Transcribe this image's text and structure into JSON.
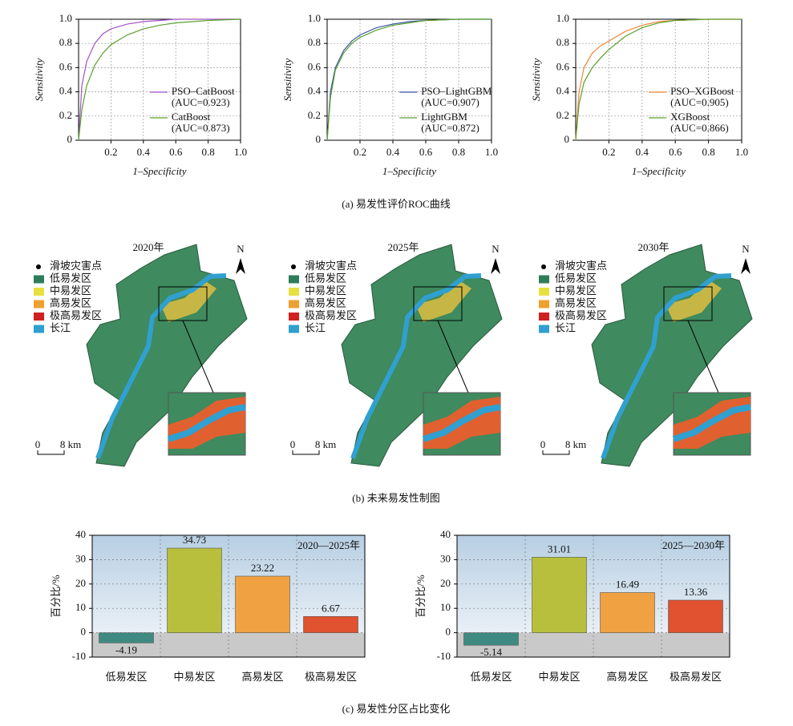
{
  "chart_data": [
    {
      "type": "line",
      "xlabel": "1–Specificity",
      "ylabel": "Sensitivity",
      "x": [
        0,
        0.02,
        0.05,
        0.1,
        0.15,
        0.2,
        0.3,
        0.4,
        0.5,
        0.6,
        0.8,
        1.0
      ],
      "series": [
        {
          "name": "PSO–CatBoost",
          "note": "(AUC=0.923)",
          "color": "#a552c8",
          "values": [
            0,
            0.45,
            0.65,
            0.8,
            0.88,
            0.92,
            0.96,
            0.98,
            0.99,
            1,
            1,
            1
          ]
        },
        {
          "name": "CatBoost",
          "note": "(AUC=0.873)",
          "color": "#5aa02c",
          "values": [
            0,
            0.25,
            0.45,
            0.62,
            0.72,
            0.79,
            0.87,
            0.92,
            0.95,
            0.97,
            0.99,
            1
          ]
        }
      ],
      "xlim": [
        0,
        1
      ],
      "xticks": [
        0.2,
        0.4,
        0.6,
        0.8,
        {
          "value": 1,
          "label": "1.0"
        }
      ],
      "ylim": [
        0,
        1
      ],
      "yticks": [
        0,
        0.2,
        0.4,
        0.6,
        0.8,
        {
          "value": 1,
          "label": "1.0"
        }
      ],
      "grid": true
    },
    {
      "type": "line",
      "xlabel": "1–Specificity",
      "ylabel": "Sensitivity",
      "x": [
        0,
        0.02,
        0.05,
        0.1,
        0.15,
        0.2,
        0.3,
        0.4,
        0.5,
        0.6,
        0.8,
        1.0
      ],
      "series": [
        {
          "name": "PSO–LightGBM",
          "note": "(AUC=0.907)",
          "color": "#3a56a8",
          "values": [
            0,
            0.4,
            0.6,
            0.74,
            0.82,
            0.87,
            0.93,
            0.96,
            0.98,
            0.99,
            1,
            1
          ]
        },
        {
          "name": "LightGBM",
          "note": "(AUC=0.872)",
          "color": "#5aa02c",
          "values": [
            0,
            0.35,
            0.58,
            0.72,
            0.8,
            0.85,
            0.91,
            0.95,
            0.97,
            0.99,
            1,
            1
          ]
        }
      ],
      "xlim": [
        0,
        1
      ],
      "xticks": [
        0.2,
        0.4,
        0.6,
        0.8,
        {
          "value": 1,
          "label": "1.0"
        }
      ],
      "ylim": [
        0,
        1
      ],
      "yticks": [
        0,
        0.2,
        0.4,
        0.6,
        0.8,
        {
          "value": 1,
          "label": "1.0"
        }
      ],
      "grid": true
    },
    {
      "type": "line",
      "xlabel": "1–Specificity",
      "ylabel": "Sensitivity",
      "x": [
        0,
        0.02,
        0.05,
        0.1,
        0.15,
        0.2,
        0.3,
        0.4,
        0.5,
        0.6,
        0.8,
        1.0
      ],
      "series": [
        {
          "name": "PSO–XGBoost",
          "note": "(AUC=0.905)",
          "color": "#f0883a",
          "values": [
            0,
            0.4,
            0.6,
            0.72,
            0.78,
            0.82,
            0.9,
            0.95,
            0.98,
            0.99,
            1,
            1
          ]
        },
        {
          "name": "XGBoost",
          "note": "(AUC=0.866)",
          "color": "#5aa02c",
          "values": [
            0,
            0.3,
            0.48,
            0.6,
            0.68,
            0.75,
            0.86,
            0.93,
            0.97,
            0.99,
            1,
            1
          ]
        }
      ],
      "xlim": [
        0,
        1
      ],
      "xticks": [
        0.2,
        0.4,
        0.6,
        0.8,
        {
          "value": 1,
          "label": "1.0"
        }
      ],
      "ylim": [
        0,
        1
      ],
      "yticks": [
        0,
        0.2,
        0.4,
        0.6,
        0.8,
        {
          "value": 1,
          "label": "1.0"
        }
      ],
      "grid": true
    },
    {
      "type": "bar",
      "ylabel": "百分比/%",
      "annotation": "2020—2025年",
      "categories": [
        "低易发区",
        "中易发区",
        "高易发区",
        "极高易发区"
      ],
      "values": [
        -4.19,
        34.73,
        23.22,
        6.67
      ],
      "colors": [
        "#3f8a80",
        "#b8bf3c",
        "#f0a142",
        "#e05230"
      ],
      "ylim": [
        -10,
        40
      ],
      "yticks": [
        -10,
        0,
        10,
        20,
        30,
        40
      ],
      "grid": true
    },
    {
      "type": "bar",
      "ylabel": "百分比/%",
      "annotation": "2025—2030年",
      "categories": [
        "低易发区",
        "中易发区",
        "高易发区",
        "极高易发区"
      ],
      "values": [
        -5.14,
        31.01,
        16.49,
        13.36
      ],
      "colors": [
        "#3f8a80",
        "#b8bf3c",
        "#f0a142",
        "#e05230"
      ],
      "ylim": [
        -10,
        40
      ],
      "yticks": [
        -10,
        0,
        10,
        20,
        30,
        40
      ],
      "grid": true
    }
  ],
  "captions": [
    "(a) 易发性评价ROC曲线",
    "(b) 未来易发性制图",
    "(c) 易发性分区占比变化"
  ],
  "maps": [
    {
      "title": "2020年",
      "north": "N",
      "scale": [
        "0",
        "8 km"
      ]
    },
    {
      "title": "2025年",
      "north": "N",
      "scale": [
        "0",
        "8 km"
      ]
    },
    {
      "title": "2030年",
      "north": "N",
      "scale": [
        "0",
        "8 km"
      ]
    }
  ],
  "map_legend": [
    {
      "label": "滑坡灾害点",
      "color": "#000000"
    },
    {
      "label": "低易发区",
      "color": "#2e7d5a"
    },
    {
      "label": "中易发区",
      "color": "#e8e040"
    },
    {
      "label": "高易发区",
      "color": "#f0a030"
    },
    {
      "label": "极高易发区",
      "color": "#d02020"
    },
    {
      "label": "长江",
      "color": "#30a0d0"
    }
  ]
}
